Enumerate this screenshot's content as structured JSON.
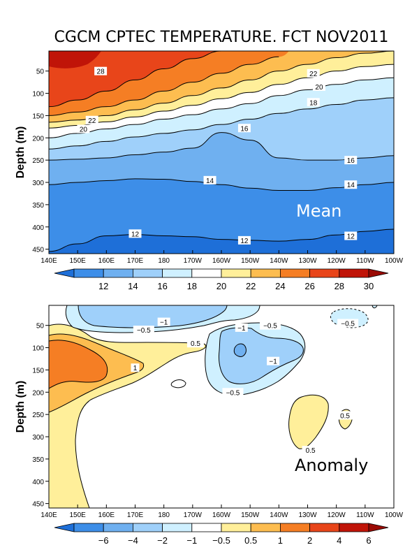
{
  "chart_data": [
    {
      "type": "heatmap",
      "subtype": "depth-longitude filled contour",
      "title": "CGCM CPTEC TEMPERATURE. FCT NOV2011",
      "panel_label": "Mean",
      "xlabel": "",
      "ylabel": "Depth (m)",
      "xlim": [
        140,
        260
      ],
      "ylim": [
        460,
        5
      ],
      "x_ticks": [
        "140E",
        "150E",
        "160E",
        "170E",
        "180",
        "170W",
        "160W",
        "150W",
        "140W",
        "130W",
        "120W",
        "110W",
        "100W"
      ],
      "y_ticks": [
        50,
        100,
        150,
        200,
        250,
        300,
        350,
        400,
        450
      ],
      "levels": [
        12,
        14,
        16,
        18,
        20,
        22,
        24,
        26,
        28,
        30
      ],
      "colorbar_labels": [
        "12",
        "14",
        "16",
        "18",
        "20",
        "22",
        "24",
        "26",
        "28",
        "30"
      ],
      "colors": [
        "#1e6fd8",
        "#3d8ee8",
        "#6fb0f0",
        "#9fd0fa",
        "#cff0ff",
        "#ffffff",
        "#ffef9a",
        "#fdbd50",
        "#f57e24",
        "#e8451a",
        "#c01408",
        "#9a0a04"
      ],
      "contour_labels": [
        {
          "text": "28",
          "lon": 158,
          "depth": 50
        },
        {
          "text": "22",
          "lon": 232,
          "depth": 55
        },
        {
          "text": "20",
          "lon": 234,
          "depth": 85
        },
        {
          "text": "18",
          "lon": 232,
          "depth": 120
        },
        {
          "text": "22",
          "lon": 155,
          "depth": 160
        },
        {
          "text": "20",
          "lon": 152,
          "depth": 180
        },
        {
          "text": "16",
          "lon": 208,
          "depth": 178
        },
        {
          "text": "16",
          "lon": 245,
          "depth": 250
        },
        {
          "text": "14",
          "lon": 196,
          "depth": 295
        },
        {
          "text": "14",
          "lon": 245,
          "depth": 305
        },
        {
          "text": "12",
          "lon": 170,
          "depth": 415
        },
        {
          "text": "12",
          "lon": 208,
          "depth": 430
        },
        {
          "text": "12",
          "lon": 245,
          "depth": 420
        }
      ],
      "isotherm_depths": {
        "lon": [
          140,
          150,
          160,
          170,
          180,
          190,
          200,
          210,
          220,
          230,
          240,
          250,
          260
        ],
        "t28": [
          130,
          115,
          95,
          70,
          45,
          22,
          5,
          null,
          null,
          null,
          null,
          null,
          null
        ],
        "t26": [
          150,
          142,
          130,
          115,
          95,
          75,
          55,
          35,
          18,
          null,
          null,
          null,
          null
        ],
        "t24": [
          165,
          160,
          150,
          137,
          122,
          105,
          88,
          70,
          50,
          35,
          20,
          10,
          5
        ],
        "t22": [
          178,
          172,
          164,
          153,
          140,
          127,
          112,
          98,
          80,
          65,
          50,
          40,
          35
        ],
        "t20": [
          200,
          190,
          180,
          170,
          158,
          148,
          135,
          123,
          105,
          92,
          80,
          70,
          65
        ],
        "t18": [
          225,
          218,
          208,
          198,
          190,
          182,
          170,
          158,
          145,
          135,
          125,
          115,
          110
        ],
        "t16": [
          250,
          248,
          245,
          238,
          232,
          223,
          188,
          205,
          245,
          250,
          250,
          245,
          240
        ],
        "t14": [
          305,
          300,
          296,
          292,
          293,
          298,
          305,
          313,
          318,
          318,
          312,
          305,
          300
        ],
        "t12": [
          455,
          438,
          420,
          417,
          420,
          422,
          428,
          430,
          432,
          428,
          418,
          410,
          405
        ]
      }
    },
    {
      "type": "heatmap",
      "subtype": "depth-longitude filled contour",
      "title": "",
      "panel_label": "Anomaly",
      "xlabel": "",
      "ylabel": "Depth (m)",
      "xlim": [
        140,
        260
      ],
      "ylim": [
        460,
        5
      ],
      "x_ticks": [
        "140E",
        "150E",
        "160E",
        "170E",
        "180",
        "170W",
        "160W",
        "150W",
        "140W",
        "130W",
        "120W",
        "110W",
        "100W"
      ],
      "y_ticks": [
        50,
        100,
        150,
        200,
        250,
        300,
        350,
        400,
        450
      ],
      "levels": [
        -6,
        -4,
        -2,
        -1,
        -0.5,
        0.5,
        1,
        2,
        4,
        6
      ],
      "colorbar_labels": [
        "−6",
        "−4",
        "−2",
        "−1",
        "−0.5",
        "0.5",
        "1",
        "2",
        "4",
        "6"
      ],
      "colors": [
        "#1e6fd8",
        "#3d8ee8",
        "#6fb0f0",
        "#9fd0fa",
        "#cff0ff",
        "#ffffff",
        "#ffef9a",
        "#fdbd50",
        "#f57e24",
        "#e8451a",
        "#c01408",
        "#9a0a04"
      ],
      "contour_labels": [
        {
          "text": "−1",
          "lon": 180,
          "depth": 42
        },
        {
          "text": "−0.5",
          "lon": 173,
          "depth": 60
        },
        {
          "text": "−1",
          "lon": 207,
          "depth": 55
        },
        {
          "text": "−0.5",
          "lon": 217,
          "depth": 50
        },
        {
          "text": "−0.5",
          "lon": 244,
          "depth": 45
        },
        {
          "text": "0.5",
          "lon": 191,
          "depth": 90
        },
        {
          "text": "−1",
          "lon": 218,
          "depth": 130
        },
        {
          "text": "1",
          "lon": 170,
          "depth": 145
        },
        {
          "text": "−0.5",
          "lon": 204,
          "depth": 200
        },
        {
          "text": "0.5",
          "lon": 243,
          "depth": 252
        },
        {
          "text": "0.5",
          "lon": 231,
          "depth": 330
        }
      ]
    }
  ]
}
